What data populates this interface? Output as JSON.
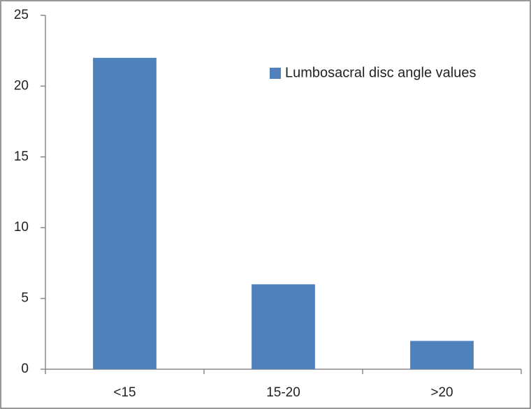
{
  "chart_data": {
    "type": "bar",
    "categories": [
      "<15",
      "15-20",
      ">20"
    ],
    "series": [
      {
        "name": "Lumbosacral disc angle values",
        "color": "#4f81bd",
        "values": [
          22,
          6,
          2
        ]
      }
    ],
    "ylim": [
      0,
      25
    ],
    "yticks": [
      0,
      5,
      10,
      15,
      20,
      25
    ],
    "grid": false,
    "legend": "upper right"
  }
}
